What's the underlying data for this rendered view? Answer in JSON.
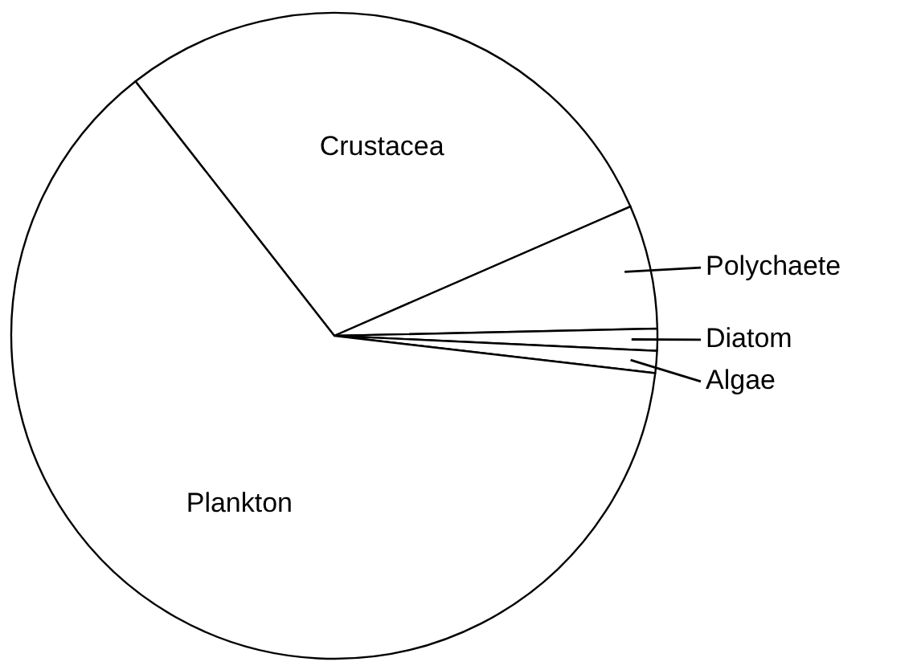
{
  "chart_data": {
    "type": "pie",
    "categories": [
      "Crustacea",
      "Polychaete",
      "Diatom",
      "Algae",
      "Plankton"
    ],
    "values": [
      29,
      6.2,
      1.1,
      1.1,
      62.6
    ],
    "colors": [
      "#ffffff",
      "#ffffff",
      "#ffffff",
      "#ffffff",
      "#ffffff"
    ]
  }
}
